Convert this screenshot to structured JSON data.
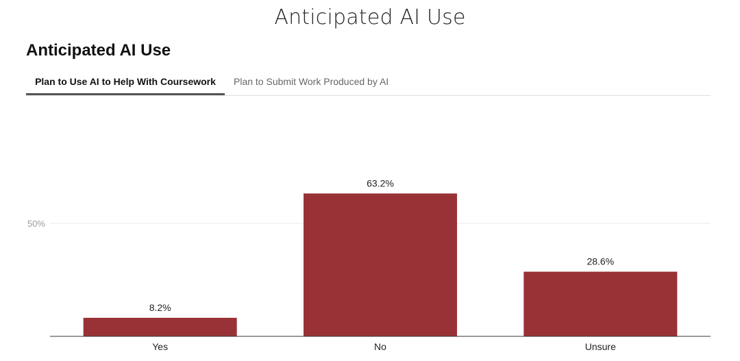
{
  "page": {
    "title": "Anticipated AI Use"
  },
  "chart_heading": "Anticipated AI Use",
  "tabs": [
    {
      "label": "Plan to Use AI to Help With Coursework",
      "active": true
    },
    {
      "label": "Plan to Submit Work Produced by AI",
      "active": false
    }
  ],
  "colors": {
    "bar": "#993236",
    "gridline": "#e8e8e8",
    "baseline": "#333333",
    "tick_label": "#999999"
  },
  "chart_data": {
    "type": "bar",
    "categories": [
      "Yes",
      "No",
      "Unsure"
    ],
    "values": [
      8.2,
      63.2,
      28.6
    ],
    "data_labels": [
      "8.2%",
      "63.2%",
      "28.6%"
    ],
    "ylim": [
      0,
      100
    ],
    "yticks": [
      50
    ],
    "ytick_labels": [
      "50%"
    ],
    "grid": true,
    "legend": "none"
  }
}
